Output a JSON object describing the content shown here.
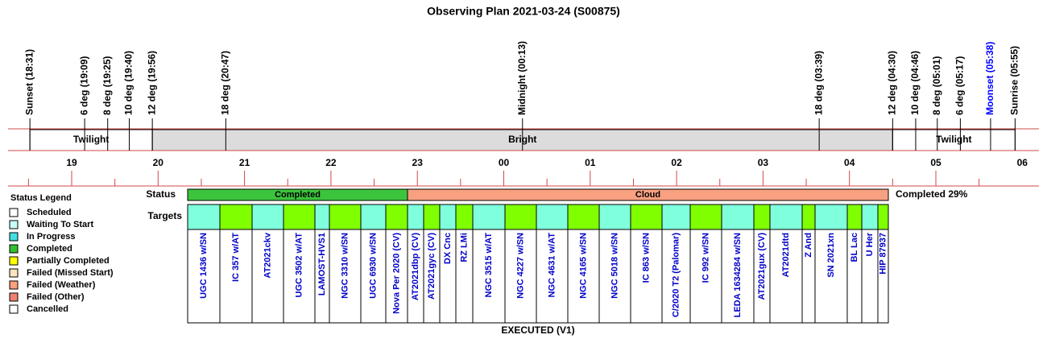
{
  "title": "Observing Plan 2021-03-24 (S00875)",
  "events": [
    "Sunset (18:31)",
    "6 deg (19:09)",
    "8 deg (19:25)",
    "10 deg (19:40)",
    "12 deg (19:56)",
    "18 deg (20:47)",
    "Midnight (00:13)",
    "18 deg (03:39)",
    "12 deg (04:30)",
    "10 deg (04:46)",
    "8 deg (05:01)",
    "6 deg (05:17)",
    "Moonset (05:38)",
    "Sunrise (05:55)"
  ],
  "bands": [
    "Twilight",
    "Bright",
    "Twilight"
  ],
  "hours": [
    "19",
    "20",
    "21",
    "22",
    "23",
    "00",
    "01",
    "02",
    "03",
    "04",
    "05",
    "06"
  ],
  "legend": {
    "title": "Status Legend",
    "items": [
      "Scheduled",
      "Waiting To Start",
      "In Progress",
      "Completed",
      "Partially Completed",
      "Failed (Missed Start)",
      "Failed (Weather)",
      "Failed (Other)",
      "Cancelled"
    ]
  },
  "status": {
    "label": "Status",
    "segments": [
      "Completed",
      "Cloud"
    ],
    "summary": "Completed 29%"
  },
  "targets": {
    "label": "Targets",
    "names": [
      "UGC 1436 w/SN",
      "IC 357 w/AT",
      "AT2021ckv",
      "UGC 3502 w/AT",
      "LAMOST-HVS1",
      "NGC 3310 w/SN",
      "UGC 6930 w/SN",
      "Nova Per 2020 (CV)",
      "AT2021dbp (CV)",
      "AT2021gyc (CV)",
      "DX Cnc",
      "RZ LMi",
      "NGC 3515 w/AT",
      "NGC 4227 w/SN",
      "NGC 4631 w/AT",
      "NGC 4165 w/SN",
      "NGC 5018 w/SN",
      "IC 863 w/SN",
      "C/2020 T2 (Palomar)",
      "IC 992 w/SN",
      "LEDA 1634284 w/SN",
      "AT2021gux (CV)",
      "AT2021dtd",
      "Z And",
      "SN 2021xn",
      "BL Lac",
      "U Her",
      "HIP 87937"
    ]
  },
  "footer": "EXECUTED (V1)"
}
